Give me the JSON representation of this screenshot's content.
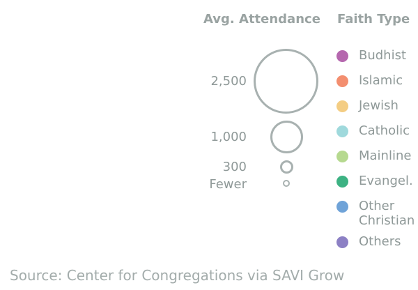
{
  "size_legend": {
    "title": "Avg. Attendance",
    "items": [
      {
        "label": "2,500"
      },
      {
        "label": "1,000"
      },
      {
        "label": "300"
      },
      {
        "label": "Fewer"
      }
    ]
  },
  "type_legend": {
    "title": "Faith Type",
    "items": [
      {
        "label": "Budhist",
        "color": "#b567ae"
      },
      {
        "label": "Islamic",
        "color": "#f38e6f"
      },
      {
        "label": "Jewish",
        "color": "#f4cd83"
      },
      {
        "label": "Catholic",
        "color": "#9fd9dc"
      },
      {
        "label": "Mainline",
        "color": "#b6d98f"
      },
      {
        "label": "Evangel.",
        "color": "#3db283"
      },
      {
        "label": "Other Christian",
        "color": "#6fa3d8"
      },
      {
        "label": "Others",
        "color": "#8c80c4"
      }
    ]
  },
  "source": "Source: Center for Congregations via SAVI Grow",
  "colors": {
    "text": "#8f9998",
    "bubble_outline": "#a8b1b0"
  }
}
